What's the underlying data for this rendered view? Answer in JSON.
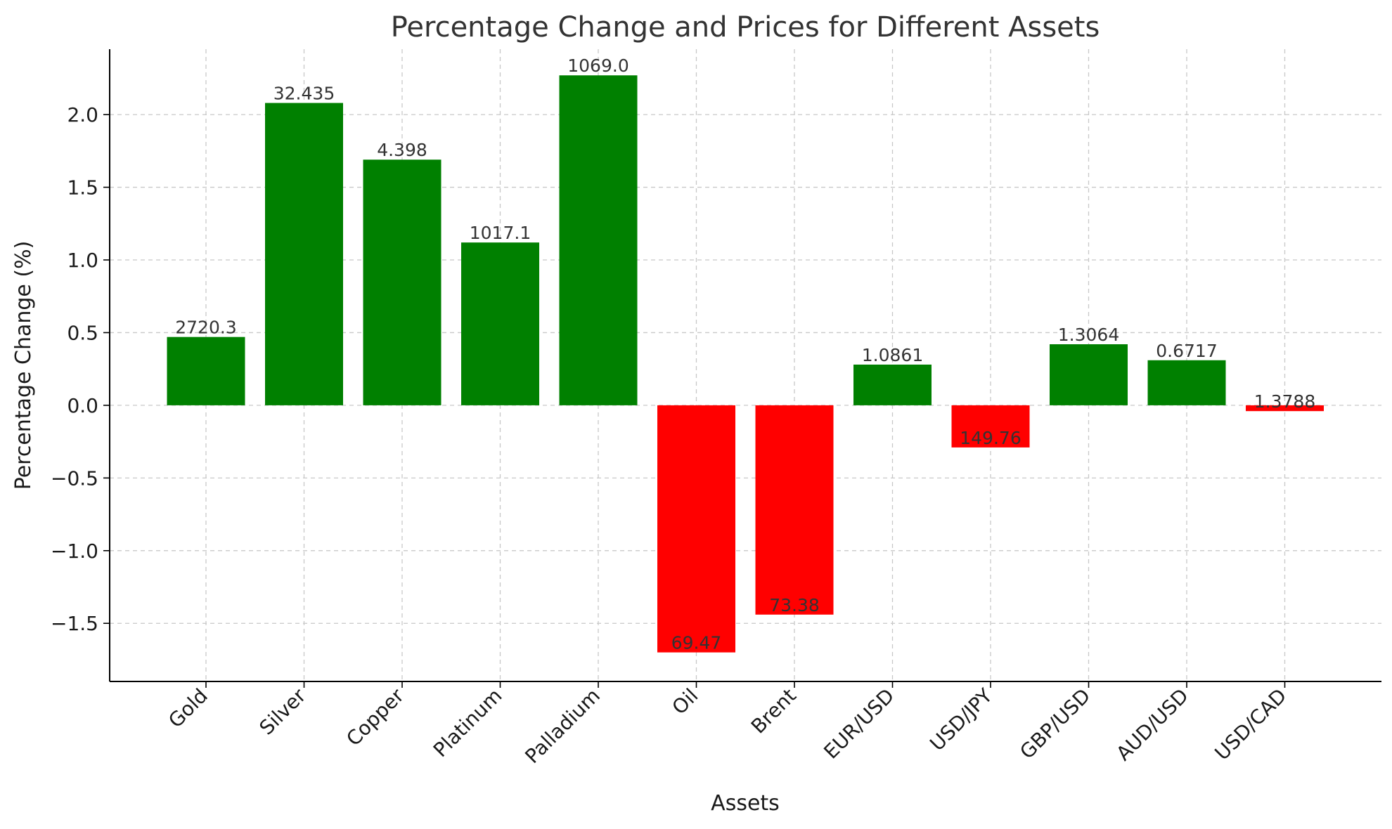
{
  "chart_data": {
    "type": "bar",
    "title": "Percentage Change and Prices for Different Assets",
    "xlabel": "Assets",
    "ylabel": "Percentage Change (%)",
    "categories": [
      "Gold",
      "Silver",
      "Copper",
      "Platinum",
      "Palladium",
      "Oil",
      "Brent",
      "EUR/USD",
      "USD/JPY",
      "GBP/USD",
      "AUD/USD",
      "USD/CAD"
    ],
    "values": [
      0.47,
      2.08,
      1.69,
      1.12,
      2.27,
      -1.7,
      -1.44,
      0.28,
      -0.29,
      0.42,
      0.31,
      -0.04
    ],
    "bar_labels": [
      "2720.3",
      "32.435",
      "4.398",
      "1017.1",
      "1069.0",
      "69.47",
      "73.38",
      "1.0861",
      "149.76",
      "1.3064",
      "0.6717",
      "1.3788"
    ],
    "ylim": [
      -1.9,
      2.45
    ],
    "yticks": [
      -1.5,
      -1.0,
      -0.5,
      0.0,
      0.5,
      1.0,
      1.5,
      2.0
    ],
    "ytick_labels": [
      "−1.5",
      "−1.0",
      "−0.5",
      "0.0",
      "0.5",
      "1.0",
      "1.5",
      "2.0"
    ],
    "grid": true,
    "colors": {
      "positive": "#008000",
      "negative": "#ff0000"
    }
  }
}
